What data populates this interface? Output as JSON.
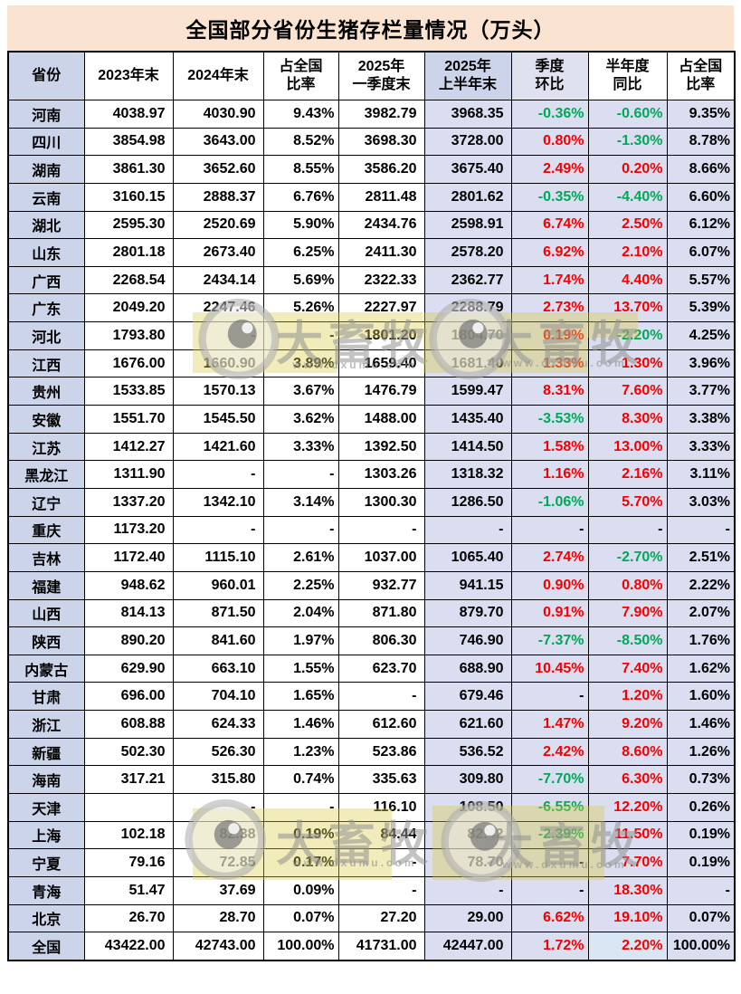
{
  "title": "全国部分省份生猪存栏量情况（万头）",
  "watermark": {
    "brand": "大畜牧",
    "url": "www.dxumu.com"
  },
  "colors": {
    "positive_value": "#f40000",
    "negative_value": "#00a859",
    "title_band_fill": "#fbe3d2",
    "header_fill": "#ccd4e9",
    "right_columns_fill": "#dadef0",
    "total_highlight_fill": "#d9e7f5"
  },
  "table": {
    "headers": [
      "省份",
      "2023年末",
      "2024年末",
      "占全国\n比率",
      "2025年\n一季度末",
      "2025年\n上半年末",
      "季度\n环比",
      "半年度\n同比",
      "占全国\n比率"
    ],
    "rows": [
      {
        "province": "河南",
        "values": [
          "4038.97",
          "4030.90",
          "9.43%",
          "3982.79",
          "3968.35",
          "-0.36%",
          "-0.60%",
          "9.35%"
        ]
      },
      {
        "province": "四川",
        "values": [
          "3854.98",
          "3643.00",
          "8.52%",
          "3698.30",
          "3728.00",
          "0.80%",
          "-1.30%",
          "8.78%"
        ]
      },
      {
        "province": "湖南",
        "values": [
          "3861.30",
          "3652.60",
          "8.55%",
          "3586.20",
          "3675.40",
          "2.49%",
          "0.20%",
          "8.66%"
        ]
      },
      {
        "province": "云南",
        "values": [
          "3160.15",
          "2888.37",
          "6.76%",
          "2811.48",
          "2801.62",
          "-0.35%",
          "-4.40%",
          "6.60%"
        ]
      },
      {
        "province": "湖北",
        "values": [
          "2595.30",
          "2520.69",
          "5.90%",
          "2434.76",
          "2598.91",
          "6.74%",
          "2.50%",
          "6.12%"
        ]
      },
      {
        "province": "山东",
        "values": [
          "2801.18",
          "2673.40",
          "6.25%",
          "2411.30",
          "2578.20",
          "6.92%",
          "2.10%",
          "6.07%"
        ]
      },
      {
        "province": "广西",
        "values": [
          "2268.54",
          "2434.14",
          "5.69%",
          "2322.33",
          "2362.77",
          "1.74%",
          "4.40%",
          "5.57%"
        ]
      },
      {
        "province": "广东",
        "values": [
          "2049.20",
          "2247.46",
          "5.26%",
          "2227.97",
          "2288.79",
          "2.73%",
          "13.70%",
          "5.39%"
        ]
      },
      {
        "province": "河北",
        "values": [
          "1793.80",
          "-",
          "-",
          "1801.20",
          "1804.70",
          "0.19%",
          "-2.20%",
          "4.25%"
        ]
      },
      {
        "province": "江西",
        "values": [
          "1676.00",
          "1660.90",
          "3.89%",
          "1659.40",
          "1681.40",
          "1.33%",
          "1.30%",
          "3.96%"
        ]
      },
      {
        "province": "贵州",
        "values": [
          "1533.85",
          "1570.13",
          "3.67%",
          "1476.79",
          "1599.47",
          "8.31%",
          "7.60%",
          "3.77%"
        ]
      },
      {
        "province": "安徽",
        "values": [
          "1551.70",
          "1545.50",
          "3.62%",
          "1488.00",
          "1435.40",
          "-3.53%",
          "8.30%",
          "3.38%"
        ]
      },
      {
        "province": "江苏",
        "values": [
          "1412.27",
          "1421.60",
          "3.33%",
          "1392.50",
          "1414.50",
          "1.58%",
          "13.00%",
          "3.33%"
        ]
      },
      {
        "province": "黑龙江",
        "values": [
          "1311.90",
          "-",
          "-",
          "1303.26",
          "1318.32",
          "1.16%",
          "2.16%",
          "3.11%"
        ]
      },
      {
        "province": "辽宁",
        "values": [
          "1337.20",
          "1342.10",
          "3.14%",
          "1300.30",
          "1286.50",
          "-1.06%",
          "5.70%",
          "3.03%"
        ]
      },
      {
        "province": "重庆",
        "values": [
          "1173.20",
          "-",
          "-",
          "-",
          "-",
          "-",
          "-",
          "-"
        ]
      },
      {
        "province": "吉林",
        "values": [
          "1172.40",
          "1115.10",
          "2.61%",
          "1037.00",
          "1065.40",
          "2.74%",
          "-2.70%",
          "2.51%"
        ]
      },
      {
        "province": "福建",
        "values": [
          "948.62",
          "960.01",
          "2.25%",
          "932.77",
          "941.15",
          "0.90%",
          "0.80%",
          "2.22%"
        ]
      },
      {
        "province": "山西",
        "values": [
          "814.13",
          "871.50",
          "2.04%",
          "871.80",
          "879.70",
          "0.91%",
          "7.90%",
          "2.07%"
        ]
      },
      {
        "province": "陕西",
        "values": [
          "890.20",
          "841.60",
          "1.97%",
          "806.30",
          "746.90",
          "-7.37%",
          "-8.50%",
          "1.76%"
        ]
      },
      {
        "province": "内蒙古",
        "values": [
          "629.90",
          "663.10",
          "1.55%",
          "623.70",
          "688.90",
          "10.45%",
          "7.40%",
          "1.62%"
        ]
      },
      {
        "province": "甘肃",
        "values": [
          "696.00",
          "704.10",
          "1.65%",
          "-",
          "679.46",
          "-",
          "1.20%",
          "1.60%"
        ]
      },
      {
        "province": "浙江",
        "values": [
          "608.88",
          "624.33",
          "1.46%",
          "612.60",
          "621.60",
          "1.47%",
          "9.20%",
          "1.46%"
        ]
      },
      {
        "province": "新疆",
        "values": [
          "502.30",
          "526.30",
          "1.23%",
          "523.86",
          "536.52",
          "2.42%",
          "8.60%",
          "1.26%"
        ]
      },
      {
        "province": "海南",
        "values": [
          "317.21",
          "315.80",
          "0.74%",
          "335.63",
          "309.80",
          "-7.70%",
          "6.30%",
          "0.73%"
        ]
      },
      {
        "province": "天津",
        "values": [
          "",
          "-",
          "-",
          "116.10",
          "108.50",
          "-6.55%",
          "12.20%",
          "0.26%"
        ]
      },
      {
        "province": "上海",
        "values": [
          "102.18",
          "82.38",
          "0.19%",
          "84.44",
          "82.42",
          "-2.39%",
          "11.50%",
          "0.19%"
        ]
      },
      {
        "province": "宁夏",
        "values": [
          "79.16",
          "72.85",
          "0.17%",
          "-",
          "78.70",
          "-",
          "7.70%",
          "0.19%"
        ]
      },
      {
        "province": "青海",
        "values": [
          "51.47",
          "37.69",
          "0.09%",
          "-",
          "-",
          "-",
          "18.30%",
          "-"
        ]
      },
      {
        "province": "北京",
        "values": [
          "26.70",
          "28.70",
          "0.07%",
          "27.20",
          "29.00",
          "6.62%",
          "19.10%",
          "0.07%"
        ]
      },
      {
        "province": "全国",
        "values": [
          "43422.00",
          "42743.00",
          "100.00%",
          "41731.00",
          "42447.00",
          "1.72%",
          "2.20%",
          "100.00%"
        ]
      }
    ]
  }
}
